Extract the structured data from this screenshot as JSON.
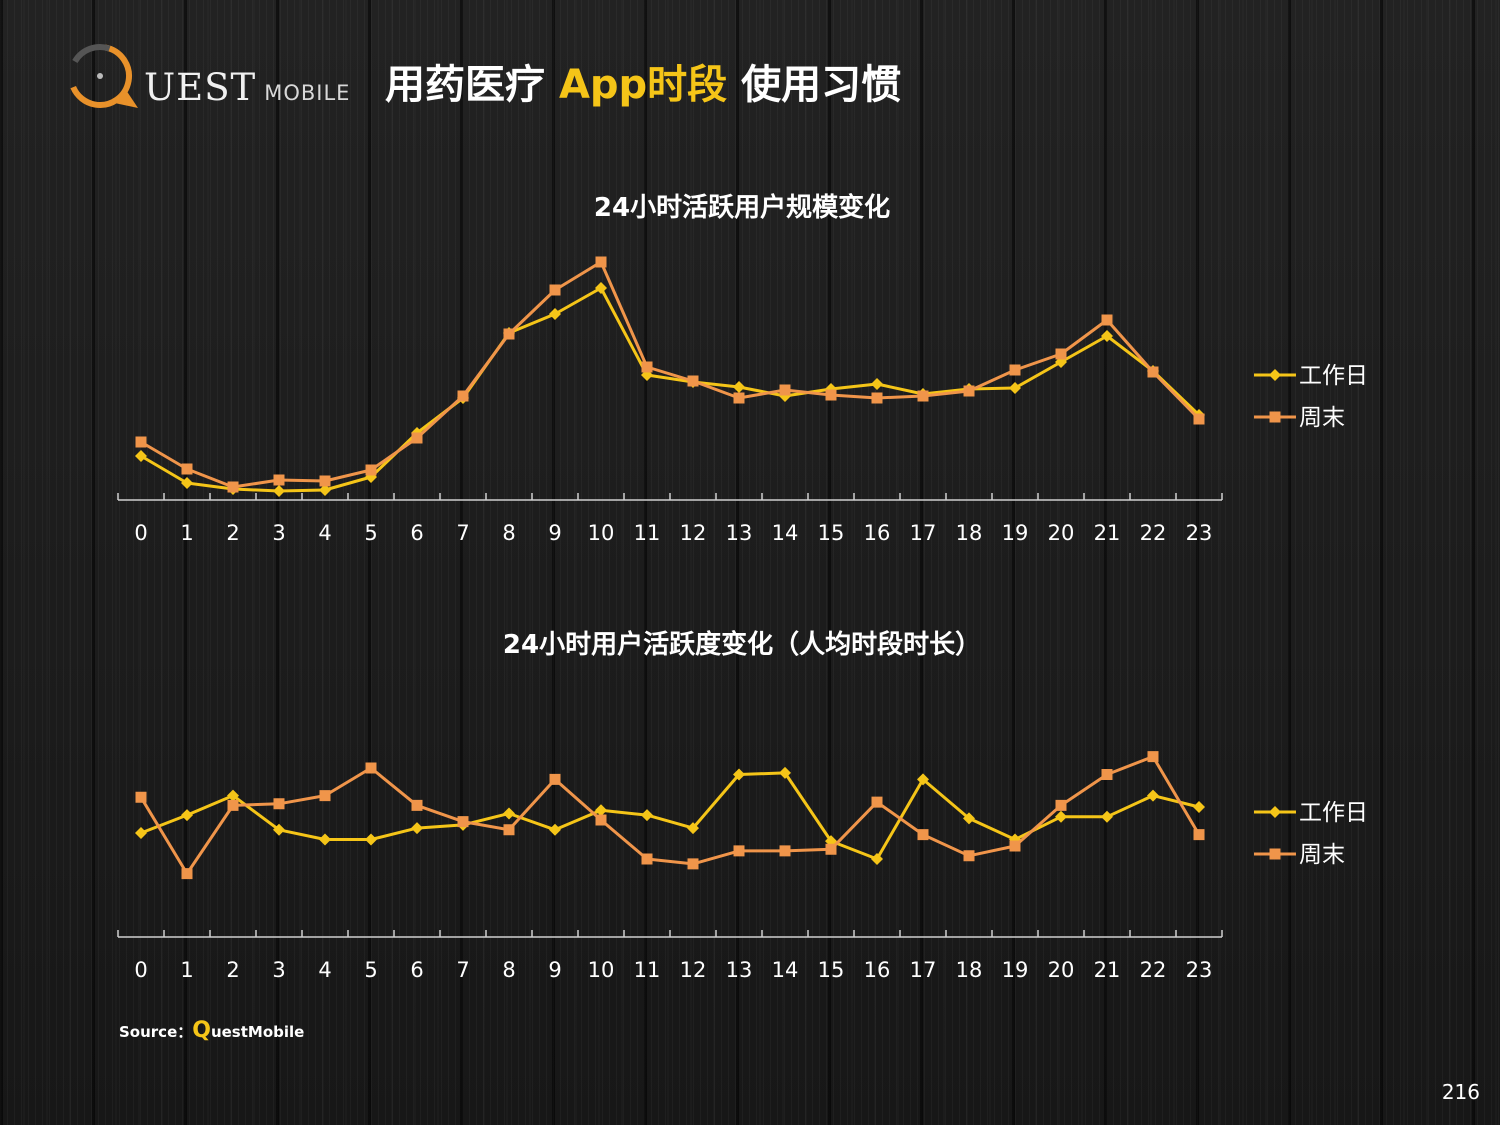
{
  "logo": {
    "word": "UEST",
    "sub": "MOBILE"
  },
  "title": {
    "part1": "用药医疗 ",
    "highlight": "App时段",
    "part2": " 使用习惯"
  },
  "colors": {
    "workday": "#f5c518",
    "weekend": "#f0954a",
    "highlight": "#f5c518"
  },
  "chart_data": [
    {
      "type": "line",
      "title": "24小时活跃用户规模变化",
      "categories": [
        "0",
        "1",
        "2",
        "3",
        "4",
        "5",
        "6",
        "7",
        "8",
        "9",
        "10",
        "11",
        "12",
        "13",
        "14",
        "15",
        "16",
        "17",
        "18",
        "19",
        "20",
        "21",
        "22",
        "23"
      ],
      "series": [
        {
          "name": "工作日",
          "marker": "diamond",
          "values": [
            4.4,
            1.7,
            1.1,
            0.9,
            1.0,
            2.3,
            6.7,
            10.2,
            16.7,
            18.6,
            21.2,
            12.5,
            11.8,
            11.3,
            10.4,
            11.1,
            11.6,
            10.6,
            11.1,
            11.2,
            13.8,
            16.4,
            12.9,
            8.5
          ]
        },
        {
          "name": "周末",
          "marker": "square",
          "values": [
            5.8,
            3.1,
            1.3,
            2.0,
            1.9,
            3.0,
            6.2,
            10.4,
            16.6,
            21.0,
            23.8,
            13.3,
            11.9,
            10.2,
            11.0,
            10.5,
            10.2,
            10.4,
            10.9,
            13.0,
            14.6,
            18.0,
            12.8,
            8.1
          ]
        }
      ],
      "ylim": [
        0,
        26
      ],
      "legend_position": "right"
    },
    {
      "type": "line",
      "title": "24小时用户活跃度变化（人均时段时长）",
      "categories": [
        "0",
        "1",
        "2",
        "3",
        "4",
        "5",
        "6",
        "7",
        "8",
        "9",
        "10",
        "11",
        "12",
        "13",
        "14",
        "15",
        "16",
        "17",
        "18",
        "19",
        "20",
        "21",
        "22",
        "23"
      ],
      "series": [
        {
          "name": "工作日",
          "marker": "diamond",
          "values": [
            6.4,
            7.5,
            8.7,
            6.6,
            6.0,
            6.0,
            6.7,
            6.9,
            7.6,
            6.6,
            7.8,
            7.5,
            6.7,
            10.0,
            10.1,
            5.9,
            4.8,
            9.7,
            7.3,
            6.0,
            7.4,
            7.4,
            8.7,
            8.0
          ]
        },
        {
          "name": "周末",
          "marker": "square",
          "values": [
            8.6,
            3.9,
            8.1,
            8.2,
            8.7,
            10.4,
            8.1,
            7.1,
            6.6,
            9.7,
            7.2,
            4.8,
            4.5,
            5.3,
            5.3,
            5.4,
            8.3,
            6.3,
            5.0,
            5.6,
            8.1,
            10.0,
            11.1,
            6.3
          ]
        }
      ],
      "ylim": [
        0,
        16
      ],
      "legend_position": "right"
    }
  ],
  "source": {
    "label": "Source：",
    "q": "Q",
    "rest": "uestMobile"
  },
  "page_number": "216"
}
